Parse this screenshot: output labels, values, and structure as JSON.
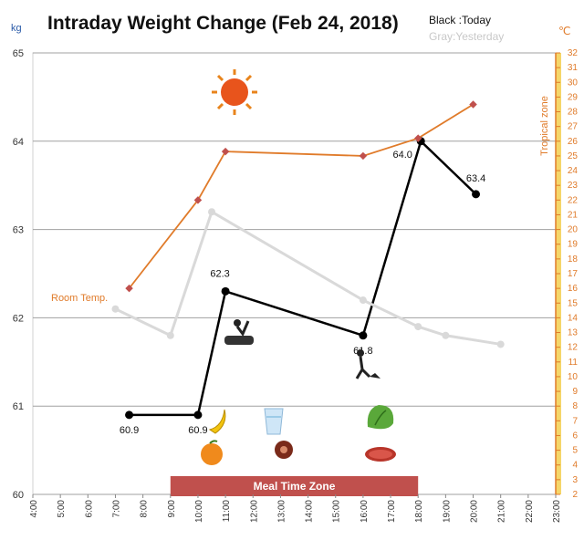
{
  "chart_data": {
    "type": "line",
    "title": "Intraday Weight Change (Feb 24, 2018)",
    "left_unit": "kg",
    "right_unit": "℃",
    "legend": {
      "today": "Black :Today",
      "yesterday": "Gray:Yesterday"
    },
    "y_left_range": [
      60,
      65
    ],
    "y_left_ticks": [
      "60",
      "61",
      "62",
      "63",
      "64",
      "65"
    ],
    "y_right_range": [
      2,
      32
    ],
    "y_right_ticks": [
      "2",
      "3",
      "4",
      "5",
      "6",
      "7",
      "8",
      "9",
      "10",
      "11",
      "12",
      "13",
      "14",
      "15",
      "16",
      "17",
      "18",
      "19",
      "20",
      "21",
      "22",
      "23",
      "24",
      "25",
      "26",
      "27",
      "28",
      "29",
      "30",
      "31",
      "32"
    ],
    "x_range": [
      4,
      23
    ],
    "x_ticks": [
      "4:00",
      "5:00",
      "6:00",
      "7:00",
      "8:00",
      "9:00",
      "10:00",
      "11:00",
      "12:00",
      "13:00",
      "14:00",
      "15:00",
      "16:00",
      "17:00",
      "18:00",
      "19:00",
      "20:00",
      "21:00",
      "22:00",
      "23:00"
    ],
    "grid": true,
    "series": [
      {
        "key": "today",
        "color": "#000000",
        "axis": "left",
        "x": [
          7.5,
          10.0,
          11.0,
          16.0,
          18.1,
          20.1
        ],
        "y": [
          60.9,
          60.9,
          62.3,
          61.8,
          64.0,
          63.4
        ],
        "labels": [
          "60.9",
          "60.9",
          "62.3",
          "61.8",
          "64.0",
          "63.4"
        ]
      },
      {
        "key": "yesterday",
        "color": "#d9d9d9",
        "axis": "left",
        "x": [
          7.0,
          9.0,
          10.5,
          16.0,
          18.0,
          19.0,
          21.0
        ],
        "y": [
          62.1,
          61.8,
          63.2,
          62.2,
          61.9,
          61.8,
          61.7
        ]
      },
      {
        "key": "temperature",
        "color": "#e07b2a",
        "axis": "right",
        "x": [
          7.5,
          10.0,
          11.0,
          16.0,
          18.0,
          20.0
        ],
        "y": [
          16,
          22,
          25.3,
          25,
          26.2,
          28.5
        ]
      }
    ],
    "annotations": {
      "room_temp": "Room Temp.",
      "tropical_zone": "Tropical zone",
      "meal_zone": "Meal Time Zone"
    },
    "meal_zone_x": [
      9,
      18
    ]
  },
  "colors": {
    "today": "#000000",
    "yesterday": "#d9d9d9",
    "temperature": "#e07b2a",
    "meal_zone": "#c0504d",
    "accent_axis": "#f0c040"
  },
  "icons": [
    "sun-icon",
    "banana-icon",
    "orange-icon",
    "water-glass-icon",
    "meat-icon",
    "lettuce-icon",
    "steak-icon",
    "wood-chopping-icon",
    "gardening-icon"
  ]
}
